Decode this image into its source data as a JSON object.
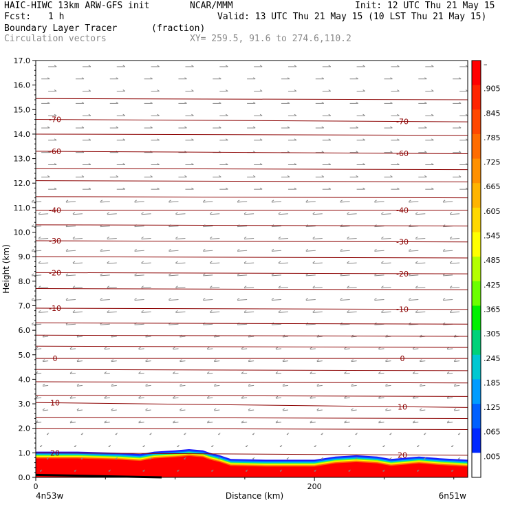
{
  "header": {
    "model": "HAIC-HIWC 13km ARW-GFS init",
    "org": "NCAR/MMM",
    "init": "Init: 12 UTC Thu 21 May 15",
    "fcst_label": "Fcst:",
    "fcst_value": "1 h",
    "valid": "Valid: 13 UTC Thu 21 May 15 (10 LST Thu 21 May 15)",
    "field": "Boundary Layer Tracer",
    "units": "(fraction)",
    "vectors": "Circulation vectors",
    "xy": "XY= 259.5, 91.6 to 274.6,110.2"
  },
  "chart_data": {
    "type": "heatmap",
    "ylabel": "Height (km)",
    "xlabel": "Distance (km)",
    "ylim": [
      0,
      17
    ],
    "xlim": [
      0,
      310
    ],
    "y_ticks": [
      "0.0",
      "1.0",
      "2.0",
      "3.0",
      "4.0",
      "5.0",
      "6.0",
      "7.0",
      "8.0",
      "9.0",
      "10.0",
      "11.0",
      "12.0",
      "13.0",
      "14.0",
      "15.0",
      "16.0",
      "17.0"
    ],
    "x_ticks": [
      {
        "value": 0,
        "label": "0"
      },
      {
        "value": 200,
        "label": "200"
      }
    ],
    "x_endpoints": {
      "left": "4n53w",
      "right": "6n51w"
    },
    "colorbar": {
      "labels": [
        "–",
        ".905",
        ".845",
        ".785",
        ".725",
        ".665",
        ".605",
        ".545",
        ".485",
        ".425",
        ".365",
        ".305",
        ".245",
        ".185",
        ".125",
        ".065",
        ".005"
      ],
      "colors": [
        "#ff0000",
        "#ff2400",
        "#ff4800",
        "#ff6c00",
        "#ff9000",
        "#ffb400",
        "#ffd800",
        "#ffff00",
        "#b4ff00",
        "#6cff00",
        "#00f000",
        "#00d27a",
        "#00c8d2",
        "#009cff",
        "#0060ff",
        "#0028ff",
        "#ffffff"
      ]
    },
    "temperature_isotherms": [
      {
        "label": "70",
        "y_left": 14.6,
        "y_right": 14.5
      },
      {
        "label": "60",
        "y_left": 13.3,
        "y_right": 13.2
      },
      {
        "label": "40",
        "y_left": 10.9,
        "y_right": 10.9
      },
      {
        "label": "30",
        "y_left": 9.65,
        "y_right": 9.6
      },
      {
        "label": "20",
        "y_left": 8.35,
        "y_right": 8.3
      },
      {
        "label": "10",
        "y_left": 6.9,
        "y_right": 6.85
      },
      {
        "label": "0",
        "y_left": 4.85,
        "y_right": 4.85
      },
      {
        "label": "10",
        "y_left": 3.05,
        "y_right": 2.85
      },
      {
        "label": "20",
        "y_left": 1.0,
        "y_right": 0.9
      }
    ],
    "unlabeled_isotherms": [
      15.45,
      14.0,
      12.6,
      12.1,
      11.45,
      10.3,
      9.0,
      7.7,
      6.3,
      5.8,
      5.35,
      4.4,
      3.9,
      3.35,
      2.45,
      2.0
    ],
    "tracer_top_height_km": [
      [
        0,
        1.05
      ],
      [
        30,
        1.05
      ],
      [
        60,
        1.0
      ],
      [
        75,
        0.95
      ],
      [
        85,
        1.05
      ],
      [
        100,
        1.1
      ],
      [
        110,
        1.15
      ],
      [
        120,
        1.1
      ],
      [
        125,
        1.0
      ],
      [
        132,
        0.9
      ],
      [
        140,
        0.75
      ],
      [
        165,
        0.72
      ],
      [
        200,
        0.72
      ],
      [
        215,
        0.85
      ],
      [
        230,
        0.9
      ],
      [
        245,
        0.85
      ],
      [
        255,
        0.75
      ],
      [
        265,
        0.8
      ],
      [
        275,
        0.85
      ],
      [
        290,
        0.78
      ],
      [
        310,
        0.72
      ]
    ]
  }
}
